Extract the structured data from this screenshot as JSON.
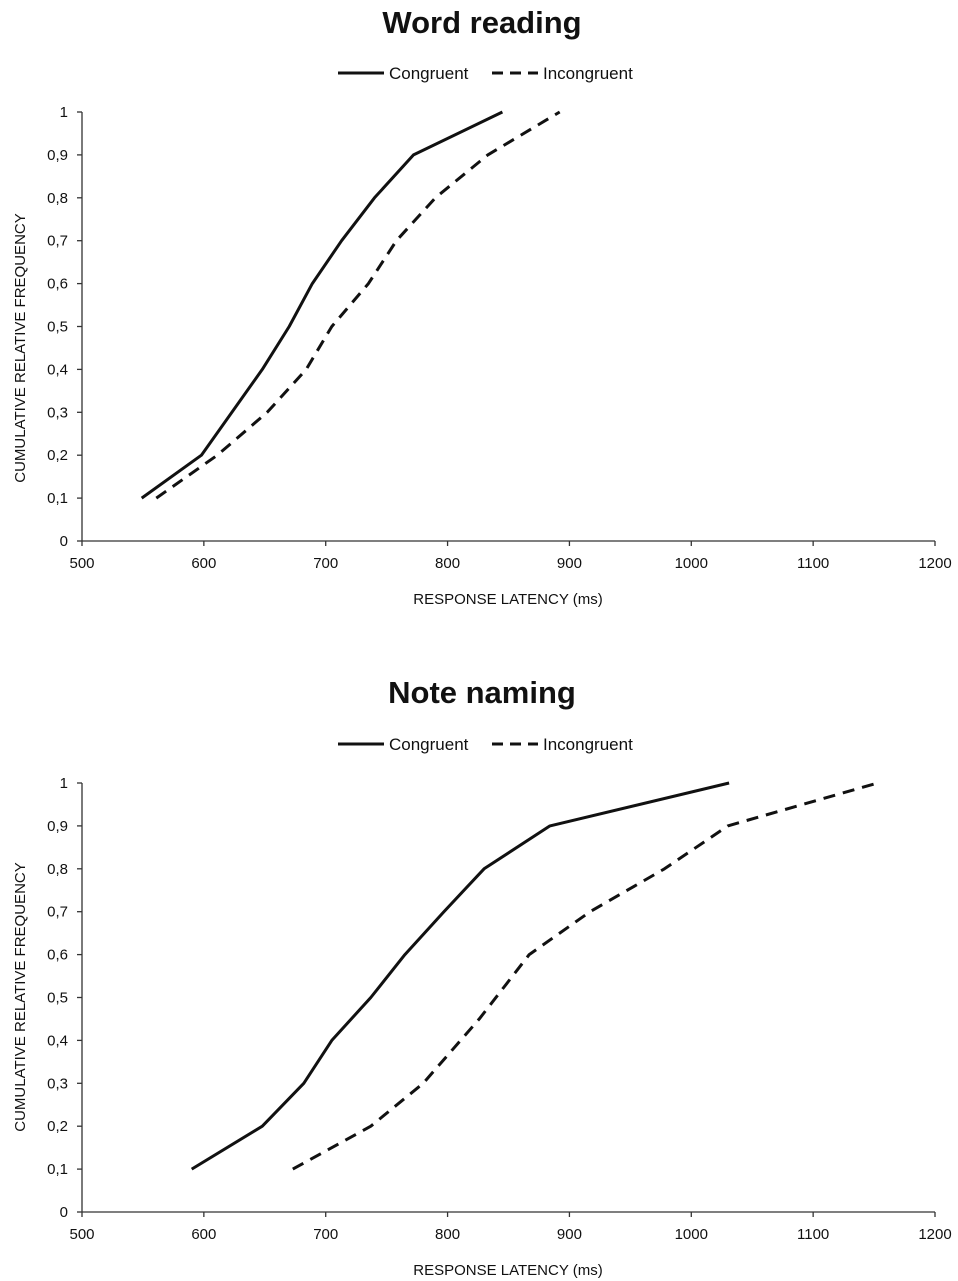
{
  "chart_data": [
    {
      "type": "line",
      "title": "Word reading",
      "xlabel": "RESPONSE LATENCY (ms)",
      "ylabel": "CUMULATIVE RELATIVE FREQUENCY",
      "xlim": [
        500,
        1200
      ],
      "ylim": [
        0,
        1
      ],
      "x_ticks": [
        "500",
        "600",
        "700",
        "800",
        "900",
        "1000",
        "1100",
        "1200"
      ],
      "y_ticks": [
        "0",
        "0,1",
        "0,2",
        "0,3",
        "0,4",
        "0,5",
        "0,6",
        "0,7",
        "0,8",
        "0,9",
        "1"
      ],
      "grid": false,
      "legend_position": "top-center",
      "series": [
        {
          "name": "Congruent",
          "line_style": "solid",
          "color": "#111111",
          "x": [
            549,
            598,
            648,
            670,
            689,
            713,
            740,
            772,
            845
          ],
          "y": [
            0.1,
            0.2,
            0.4,
            0.5,
            0.6,
            0.7,
            0.8,
            0.9,
            1.0
          ]
        },
        {
          "name": "Incongruent",
          "line_style": "dashed",
          "color": "#111111",
          "x": [
            561,
            611,
            652,
            684,
            705,
            735,
            758,
            790,
            833,
            892
          ],
          "y": [
            0.1,
            0.2,
            0.3,
            0.4,
            0.5,
            0.6,
            0.7,
            0.8,
            0.9,
            1.0
          ]
        }
      ]
    },
    {
      "type": "line",
      "title": "Note naming",
      "xlabel": "RESPONSE LATENCY (ms)",
      "ylabel": "CUMULATIVE RELATIVE FREQUENCY",
      "xlim": [
        500,
        1200
      ],
      "ylim": [
        0,
        1
      ],
      "x_ticks": [
        "500",
        "600",
        "700",
        "800",
        "900",
        "1000",
        "1100",
        "1200"
      ],
      "y_ticks": [
        "0",
        "0,1",
        "0,2",
        "0,3",
        "0,4",
        "0,5",
        "0,6",
        "0,7",
        "0,8",
        "0,9",
        "1"
      ],
      "grid": false,
      "legend_position": "top-center",
      "series": [
        {
          "name": "Congruent",
          "line_style": "solid",
          "color": "#111111",
          "x": [
            590,
            648,
            682,
            705,
            737,
            765,
            797,
            830,
            884,
            1031
          ],
          "y": [
            0.1,
            0.2,
            0.3,
            0.4,
            0.5,
            0.6,
            0.7,
            0.8,
            0.9,
            1.0
          ]
        },
        {
          "name": "Incongruent",
          "line_style": "dashed",
          "color": "#111111",
          "x": [
            673,
            737,
            780,
            826,
            867,
            917,
            978,
            1030,
            1153
          ],
          "y": [
            0.1,
            0.2,
            0.3,
            0.45,
            0.6,
            0.7,
            0.8,
            0.9,
            1.0
          ]
        }
      ]
    }
  ]
}
